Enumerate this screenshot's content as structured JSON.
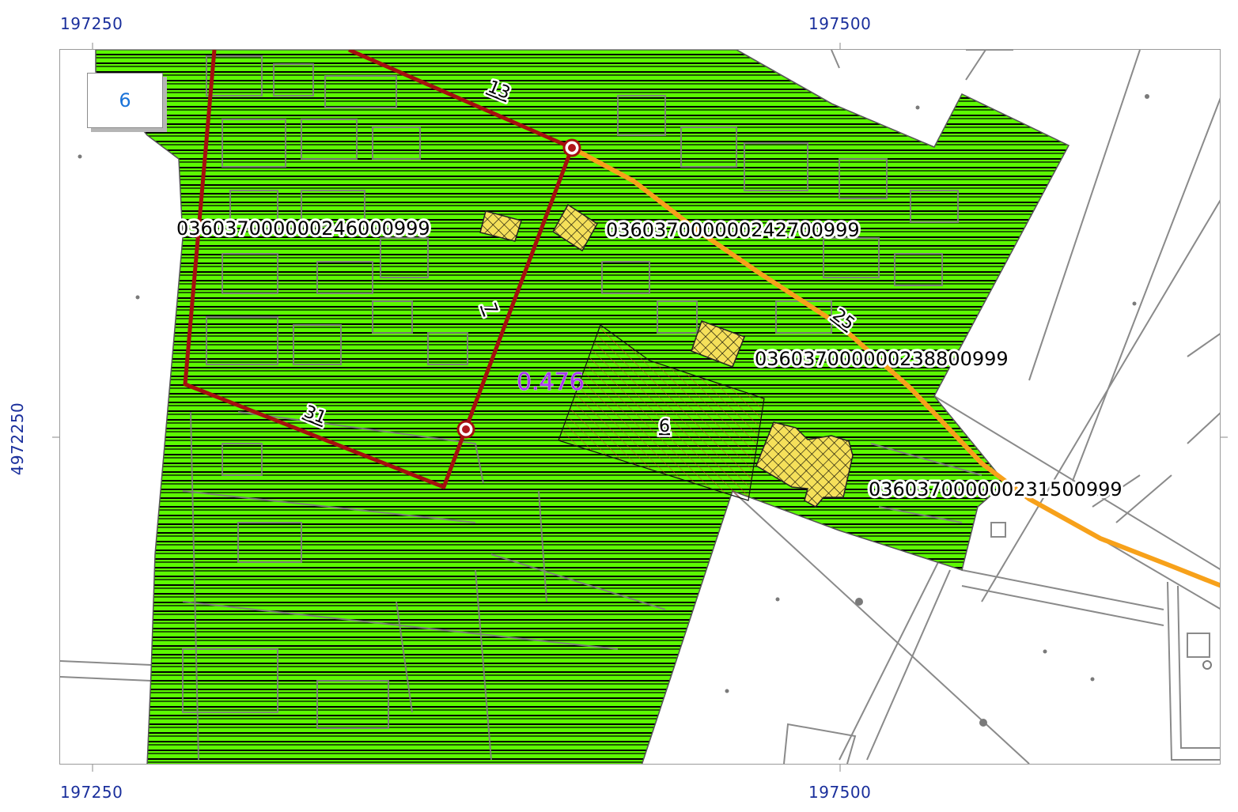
{
  "coordinates": {
    "x_left_top": "197250",
    "x_right_top": "197500",
    "x_left_bottom": "197250",
    "x_right_bottom": "197500",
    "y_left": "4972250"
  },
  "sheet_number": "6",
  "parcel_ids": [
    "036037000000246000999",
    "036037000000242700999",
    "036037000000238800999",
    "036037000000231500999"
  ],
  "segment_labels": [
    "13",
    "7",
    "31",
    "25"
  ],
  "zone_label": "6",
  "area_value": "0.476",
  "colors": {
    "zone_fill": "#5cfa02",
    "hatch_line": "#000000",
    "boundary_red": "#a50f0f",
    "road_orange": "#f7a11a",
    "building_yellow": "#f5e05a",
    "area_text": "#a838f0",
    "coord_text": "#1a2f9c",
    "sheet_text": "#1a73d9"
  },
  "icons": [
    "vertex-marker-icon"
  ]
}
